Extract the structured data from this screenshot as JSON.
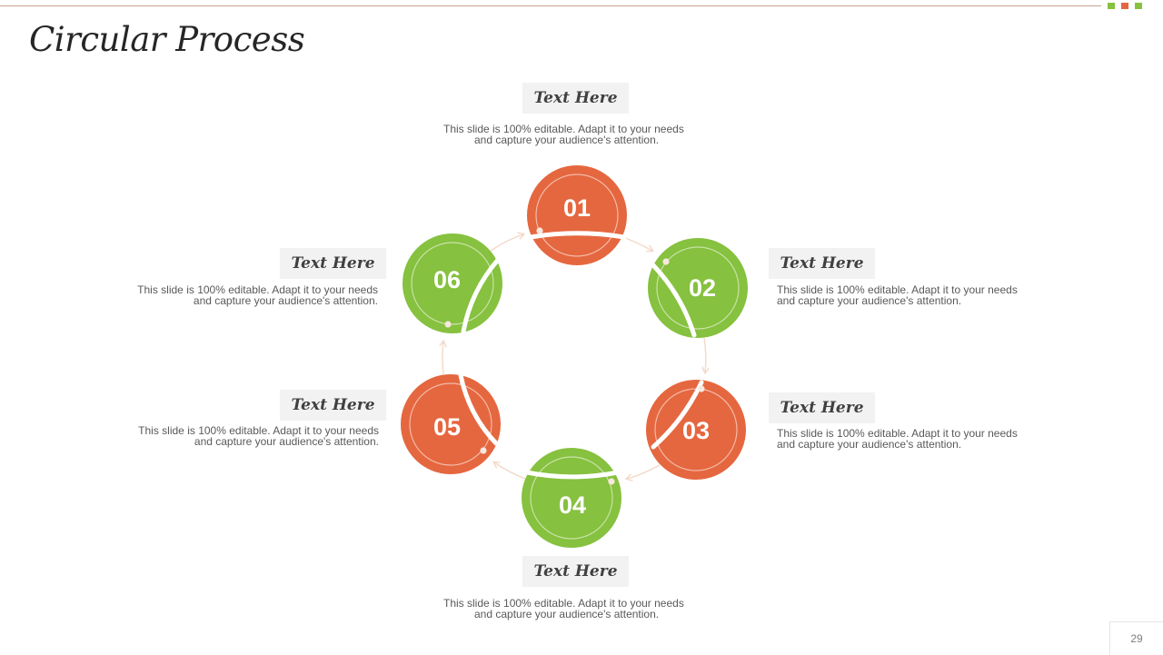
{
  "slide": {
    "title": "Circular Process",
    "page_number": "29"
  },
  "colors": {
    "orange": "#e5673f",
    "green": "#86c13f",
    "arrow": "#f3d9c8",
    "rule": "#c8a48c"
  },
  "steps": [
    {
      "number": "01",
      "color": "orange",
      "title": "Text Here",
      "desc_line1": "This slide is 100% editable. Adapt it to your needs",
      "desc_line2": "and capture your audience's attention."
    },
    {
      "number": "02",
      "color": "green",
      "title": "Text Here",
      "desc_line1": "This slide is 100% editable. Adapt it to your needs",
      "desc_line2": "and capture your audience's attention."
    },
    {
      "number": "03",
      "color": "orange",
      "title": "Text Here",
      "desc_line1": "This slide is 100% editable. Adapt it to your needs",
      "desc_line2": "and capture your audience's attention."
    },
    {
      "number": "04",
      "color": "green",
      "title": "Text Here",
      "desc_line1": "This slide is 100% editable. Adapt it to your needs",
      "desc_line2": "and capture your audience's attention."
    },
    {
      "number": "05",
      "color": "orange",
      "title": "Text Here",
      "desc_line1": "This slide is 100% editable. Adapt it to your needs",
      "desc_line2": "and capture your audience's attention."
    },
    {
      "number": "06",
      "color": "green",
      "title": "Text Here",
      "desc_line1": "This slide is 100% editable. Adapt it to your needs",
      "desc_line2": "and capture your audience's attention."
    }
  ]
}
